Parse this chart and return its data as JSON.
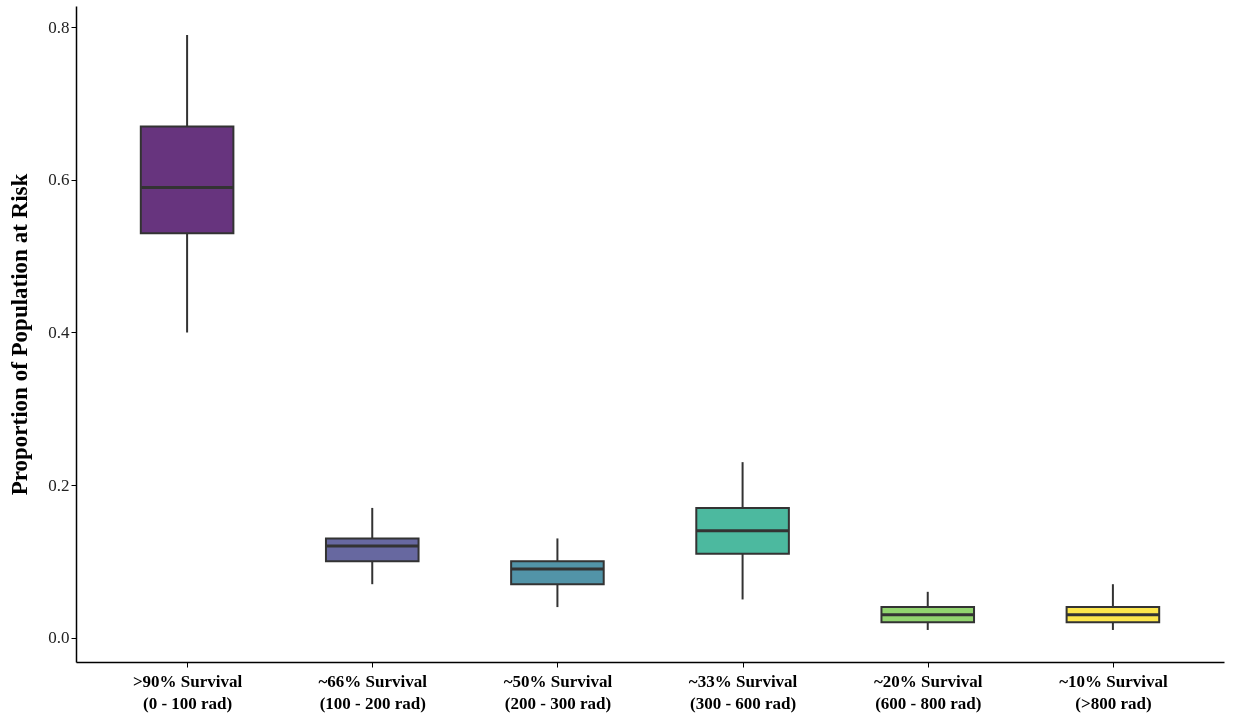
{
  "chart_data": {
    "type": "box",
    "ylabel": "Proportion of Population at Risk",
    "categories": [
      ">90% Survival\n(0 - 100 rad)",
      "~66% Survival\n(100 - 200 rad)",
      "~50% Survival\n(200 - 300 rad)",
      "~33% Survival\n(300 - 600 rad)",
      "~20% Survival\n(600 - 800 rad)",
      "~10% Survival\n(>800 rad)"
    ],
    "boxes": [
      {
        "low": 0.4,
        "q1": 0.53,
        "median": 0.59,
        "q3": 0.67,
        "high": 0.79
      },
      {
        "low": 0.07,
        "q1": 0.1,
        "median": 0.12,
        "q3": 0.13,
        "high": 0.17
      },
      {
        "low": 0.04,
        "q1": 0.07,
        "median": 0.09,
        "q3": 0.1,
        "high": 0.13
      },
      {
        "low": 0.05,
        "q1": 0.11,
        "median": 0.14,
        "q3": 0.17,
        "high": 0.23
      },
      {
        "low": 0.01,
        "q1": 0.02,
        "median": 0.03,
        "q3": 0.04,
        "high": 0.06
      },
      {
        "low": 0.01,
        "q1": 0.02,
        "median": 0.03,
        "q3": 0.04,
        "high": 0.07
      }
    ],
    "colors": [
      "#67347e",
      "#6768a0",
      "#5294a8",
      "#4cb99f",
      "#91d46f",
      "#fde74c"
    ],
    "ylim": [
      -0.032,
      0.828
    ],
    "yticks": [
      {
        "value": 0,
        "label": "0.0"
      },
      {
        "value": 0.2,
        "label": "0.2"
      },
      {
        "value": 0.4,
        "label": "0.4"
      },
      {
        "value": 0.6,
        "label": "0.6"
      },
      {
        "value": 0.8,
        "label": "0.8"
      }
    ]
  }
}
